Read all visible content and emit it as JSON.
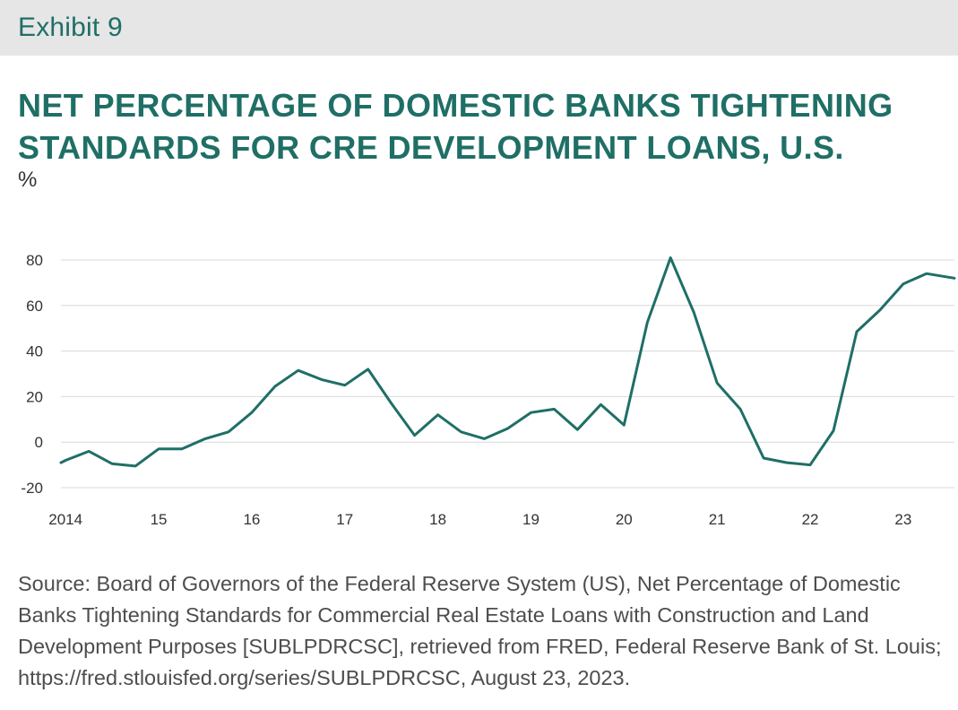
{
  "header": {
    "exhibit_label": "Exhibit 9"
  },
  "chart_data": {
    "type": "line",
    "title": "NET PERCENTAGE OF DOMESTIC BANKS TIGHTENING STANDARDS FOR CRE DEVELOPMENT LOANS, U.S.",
    "unit_label": "%",
    "xlabel": "",
    "ylabel": "",
    "ylim": [
      -20,
      80
    ],
    "y_ticks": [
      -20,
      0,
      20,
      40,
      60,
      80
    ],
    "x_ticks": [
      {
        "year": 2014,
        "label": "2014"
      },
      {
        "year": 2015,
        "label": "15"
      },
      {
        "year": 2016,
        "label": "16"
      },
      {
        "year": 2017,
        "label": "17"
      },
      {
        "year": 2018,
        "label": "18"
      },
      {
        "year": 2019,
        "label": "19"
      },
      {
        "year": 2020,
        "label": "20"
      },
      {
        "year": 2021,
        "label": "21"
      },
      {
        "year": 2022,
        "label": "22"
      },
      {
        "year": 2023,
        "label": "23"
      }
    ],
    "xlim": [
      2013.95,
      2023.55
    ],
    "grid": true,
    "line_color": "#1f6f66",
    "series": [
      {
        "x": [
          2013.95,
          2014.0,
          2014.25,
          2014.5,
          2014.75,
          2015.0,
          2015.25,
          2015.5,
          2015.75,
          2016.0,
          2016.25,
          2016.5,
          2016.75,
          2017.0,
          2017.25,
          2017.5,
          2017.75,
          2018.0,
          2018.25,
          2018.5,
          2018.75,
          2019.0,
          2019.25,
          2019.5,
          2019.75,
          2020.0,
          2020.25,
          2020.5,
          2020.75,
          2021.0,
          2021.25,
          2021.5,
          2021.75,
          2022.0,
          2022.25,
          2022.5,
          2022.75,
          2023.0,
          2023.25,
          2023.55
        ],
        "values": [
          -9,
          -8,
          -4,
          -9.5,
          -10.5,
          -3,
          -3,
          1.5,
          4.5,
          13,
          24.5,
          31.5,
          27.5,
          25,
          32,
          17,
          3,
          12,
          4.5,
          1.5,
          6,
          13,
          14.5,
          5.5,
          16.5,
          7.5,
          52.5,
          81,
          57,
          26,
          14.5,
          -7,
          -9,
          -10,
          5,
          48.5,
          58,
          69.5,
          74,
          72
        ]
      }
    ]
  },
  "source": {
    "text": "Source: Board of Governors of the Federal Reserve System (US), Net Percentage of Domestic Banks Tightening Standards for Commercial Real Estate Loans with Construction and Land Development Purposes [SUBLPDRCSC], retrieved from FRED, Federal Reserve Bank of St. Louis; https://fred.stlouisfed.org/series/SUBLPDRCSC, August 23, 2023."
  }
}
